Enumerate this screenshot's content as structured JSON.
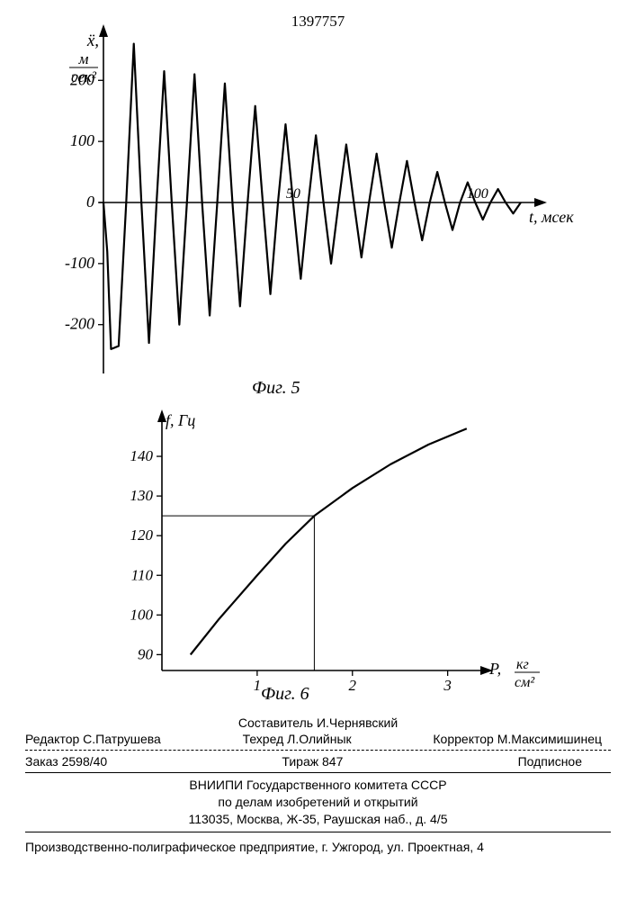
{
  "document_number": "1397757",
  "fig5_label": "Фиг. 5",
  "fig6_label": "Фиг. 6",
  "chart1": {
    "type": "line",
    "y_axis_label_1": "ẍ,",
    "y_axis_label_2": "м",
    "y_axis_label_3": "сек²",
    "x_axis_label": "t, мсек",
    "y_ticks": [
      -200,
      -100,
      0,
      100,
      200
    ],
    "x_ticks_inline": [
      "50",
      "100"
    ],
    "ylim": [
      -280,
      280
    ],
    "xlim": [
      0,
      115
    ],
    "line_color": "#000000",
    "line_width": 2.2,
    "background_color": "#ffffff",
    "series": [
      {
        "t": 0,
        "v": 0
      },
      {
        "t": 1,
        "v": -80
      },
      {
        "t": 2,
        "v": -240
      },
      {
        "t": 4,
        "v": -235
      },
      {
        "t": 6,
        "v": 0
      },
      {
        "t": 8,
        "v": 260
      },
      {
        "t": 10,
        "v": 0
      },
      {
        "t": 12,
        "v": -230
      },
      {
        "t": 14,
        "v": 0
      },
      {
        "t": 16,
        "v": 215
      },
      {
        "t": 18,
        "v": 0
      },
      {
        "t": 20,
        "v": -200
      },
      {
        "t": 22,
        "v": 0
      },
      {
        "t": 24,
        "v": 210
      },
      {
        "t": 26,
        "v": 0
      },
      {
        "t": 28,
        "v": -185
      },
      {
        "t": 30,
        "v": 0
      },
      {
        "t": 32,
        "v": 195
      },
      {
        "t": 34,
        "v": 0
      },
      {
        "t": 36,
        "v": -170
      },
      {
        "t": 38,
        "v": 0
      },
      {
        "t": 40,
        "v": 158
      },
      {
        "t": 42,
        "v": 0
      },
      {
        "t": 44,
        "v": -150
      },
      {
        "t": 46,
        "v": 0
      },
      {
        "t": 48,
        "v": 128
      },
      {
        "t": 50,
        "v": 0
      },
      {
        "t": 52,
        "v": -125
      },
      {
        "t": 54,
        "v": 0
      },
      {
        "t": 56,
        "v": 110
      },
      {
        "t": 58,
        "v": 0
      },
      {
        "t": 60,
        "v": -100
      },
      {
        "t": 62,
        "v": 0
      },
      {
        "t": 64,
        "v": 95
      },
      {
        "t": 66,
        "v": 0
      },
      {
        "t": 68,
        "v": -90
      },
      {
        "t": 70,
        "v": 0
      },
      {
        "t": 72,
        "v": 80
      },
      {
        "t": 74,
        "v": 0
      },
      {
        "t": 76,
        "v": -74
      },
      {
        "t": 78,
        "v": 0
      },
      {
        "t": 80,
        "v": 68
      },
      {
        "t": 82,
        "v": 0
      },
      {
        "t": 84,
        "v": -62
      },
      {
        "t": 86,
        "v": 0
      },
      {
        "t": 88,
        "v": 50
      },
      {
        "t": 90,
        "v": 0
      },
      {
        "t": 92,
        "v": -45
      },
      {
        "t": 94,
        "v": 0
      },
      {
        "t": 96,
        "v": 33
      },
      {
        "t": 98,
        "v": 0
      },
      {
        "t": 100,
        "v": -28
      },
      {
        "t": 102,
        "v": 0
      },
      {
        "t": 104,
        "v": 22
      },
      {
        "t": 106,
        "v": 0
      },
      {
        "t": 108,
        "v": -18
      },
      {
        "t": 110,
        "v": 0
      }
    ]
  },
  "chart2": {
    "type": "line",
    "y_axis_label": "f, Гц",
    "x_axis_label_1": "P,",
    "x_axis_label_2": "кг",
    "x_axis_label_3": "см²",
    "y_ticks": [
      90,
      100,
      110,
      120,
      130,
      140
    ],
    "x_ticks": [
      1,
      2,
      3
    ],
    "ylim": [
      86,
      150
    ],
    "xlim": [
      0,
      3.4
    ],
    "line_color": "#000000",
    "line_width": 2.2,
    "guide_line_width": 1,
    "background_color": "#ffffff",
    "series": [
      {
        "p": 0.3,
        "f": 90
      },
      {
        "p": 0.6,
        "f": 99
      },
      {
        "p": 1.0,
        "f": 110
      },
      {
        "p": 1.3,
        "f": 118
      },
      {
        "p": 1.6,
        "f": 125
      },
      {
        "p": 2.0,
        "f": 132
      },
      {
        "p": 2.4,
        "f": 138
      },
      {
        "p": 2.8,
        "f": 143
      },
      {
        "p": 3.2,
        "f": 147
      }
    ],
    "guide_point": {
      "p": 1.6,
      "f": 125
    }
  },
  "footer": {
    "compiler_label": "Составитель И.Чернявский",
    "editor_label": "Редактор С.Патрушева",
    "techred_label": "Техред Л.Олийнык",
    "corrector_label": "Корректор М.Максимишинец",
    "order_label": "Заказ 2598/40",
    "tirazh_label": "Тираж 847",
    "podpisnoe_label": "Подписное",
    "institution_line1": "ВНИИПИ Государственного комитета СССР",
    "institution_line2": "по делам изобретений и открытий",
    "institution_line3": "113035, Москва, Ж-35, Раушская наб., д. 4/5",
    "bottom_line": "Производственно-полиграфическое предприятие, г. Ужгород, ул. Проектная, 4"
  }
}
